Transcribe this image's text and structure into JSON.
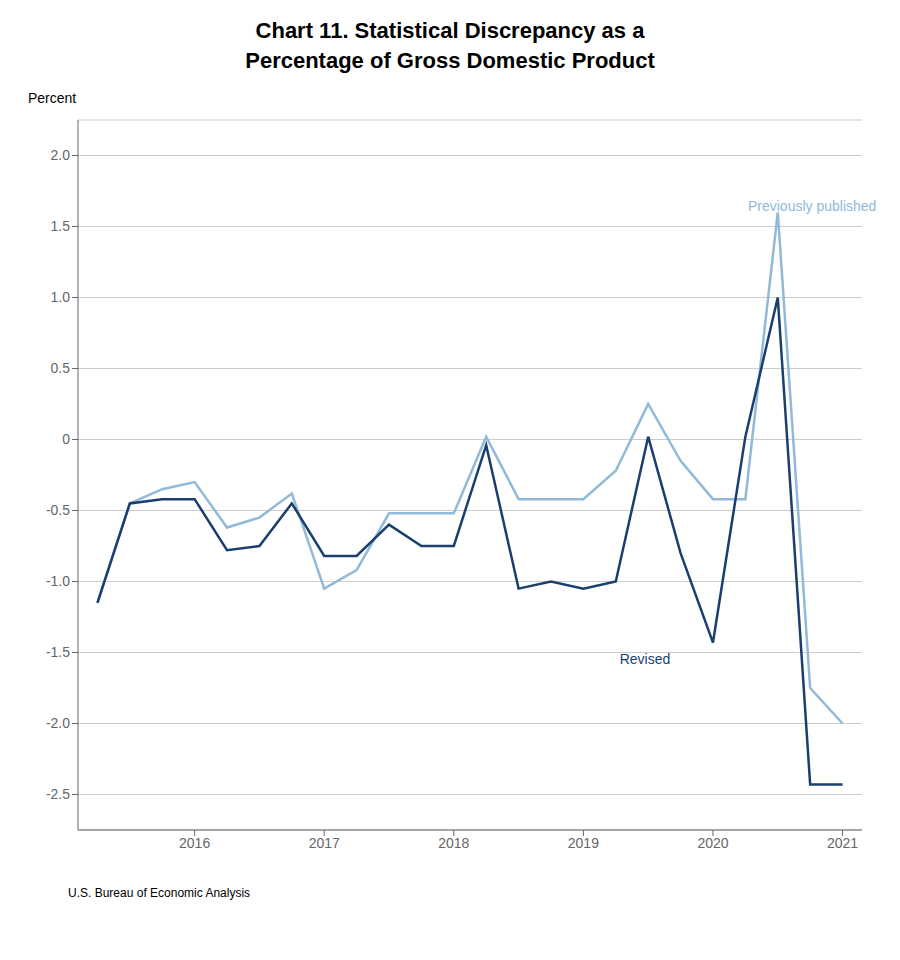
{
  "chart_data": {
    "type": "line",
    "title": "Chart 11. Statistical Discrepancy as a\nPercentage of Gross Domestic Product",
    "ylabel": "Percent",
    "source": "U.S. Bureau of Economic Analysis",
    "x": [
      2015.25,
      2015.5,
      2015.75,
      2016.0,
      2016.25,
      2016.5,
      2016.75,
      2017.0,
      2017.25,
      2017.5,
      2017.75,
      2018.0,
      2018.25,
      2018.5,
      2018.75,
      2019.0,
      2019.25,
      2019.5,
      2019.75,
      2020.0,
      2020.25,
      2020.5,
      2020.75,
      2021.0
    ],
    "series": [
      {
        "name": "Previously published",
        "color": "#90BAD8",
        "values": [
          -1.15,
          -0.45,
          -0.35,
          -0.3,
          -0.62,
          -0.55,
          -0.38,
          -1.05,
          -0.92,
          -0.52,
          -0.52,
          -0.52,
          0.02,
          -0.42,
          -0.42,
          -0.42,
          -0.22,
          0.25,
          -0.15,
          -0.42,
          -0.42,
          1.6,
          -1.75,
          -2.0
        ]
      },
      {
        "name": "Revised",
        "color": "#1A3F6F",
        "values": [
          -1.15,
          -0.45,
          -0.42,
          -0.42,
          -0.78,
          -0.75,
          -0.45,
          -0.82,
          -0.82,
          -0.6,
          -0.75,
          -0.75,
          -0.04,
          -1.05,
          -1.0,
          -1.05,
          -1.0,
          0.02,
          -0.8,
          -1.43,
          0.02,
          1.0,
          -2.43,
          -2.43
        ]
      }
    ],
    "xlim": [
      2015.1,
      2021.15
    ],
    "ylim": [
      -2.75,
      2.25
    ],
    "xticks": [
      2016,
      2017,
      2018,
      2019,
      2020,
      2021
    ],
    "yticks": [
      -2.5,
      {
        "value": -2.0,
        "label": "-2.0"
      },
      -1.5,
      {
        "value": -1.0,
        "label": "-1.0"
      },
      -0.5,
      0,
      0.5,
      {
        "value": 1.0,
        "label": "1.0"
      },
      1.5,
      {
        "value": 2.0,
        "label": "2.0"
      }
    ],
    "grid": true,
    "annotations": [
      {
        "text": "Revised",
        "x": 2019.28,
        "y": -1.48
      },
      {
        "text": "Previously published",
        "x": 2020.27,
        "y": 1.58
      }
    ]
  }
}
